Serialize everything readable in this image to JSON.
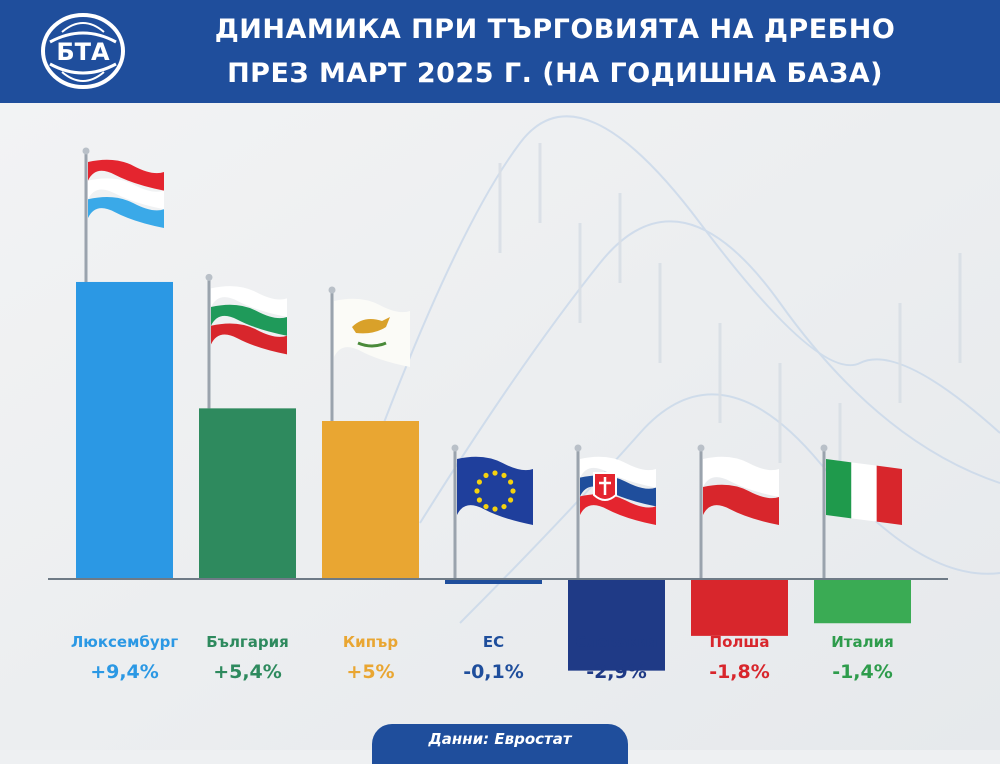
{
  "header": {
    "logo_text": "БТА",
    "title_line1": "ДИНАМИКА ПРИ ТЪРГОВИЯТА НА ДРЕБНО",
    "title_line2": "ПРЕЗ МАРТ 2025 Г. (НА ГОДИШНА БАЗА)"
  },
  "chart_data": {
    "type": "bar",
    "categories": [
      "Люксембург",
      "България",
      "Кипър",
      "ЕС",
      "Словакия",
      "Полша",
      "Италия"
    ],
    "values": [
      9.4,
      5.4,
      5.0,
      -0.1,
      -2.9,
      -1.8,
      -1.4
    ],
    "value_labels": [
      "+9,4%",
      "+5,4%",
      "+5%",
      "-0,1%",
      "-2,9%",
      "-1,8%",
      "-1,4%"
    ],
    "colors": [
      "#2b98e4",
      "#2e8a5e",
      "#e9a632",
      "#1f4e9c",
      "#1f3a86",
      "#d8262c",
      "#3aab54"
    ],
    "label_colors": [
      "#2b98e4",
      "#2e8a5e",
      "#e9a632",
      "#1f4e9c",
      "#1f3a86",
      "#d8262c",
      "#2e9c4c"
    ],
    "flags": [
      "luxembourg",
      "bulgaria",
      "cyprus",
      "eu",
      "slovakia",
      "poland",
      "italy"
    ],
    "title": "ДИНАМИКА ПРИ ТЪРГОВИЯТА НА ДРЕБНО ПРЕЗ МАРТ 2025 Г. (НА ГОДИШНА БАЗА)",
    "xlabel": "",
    "ylabel": "",
    "ylim": [
      -3,
      10
    ],
    "grid": false,
    "legend": "none"
  },
  "source": {
    "text": "Данни: Евростат"
  }
}
